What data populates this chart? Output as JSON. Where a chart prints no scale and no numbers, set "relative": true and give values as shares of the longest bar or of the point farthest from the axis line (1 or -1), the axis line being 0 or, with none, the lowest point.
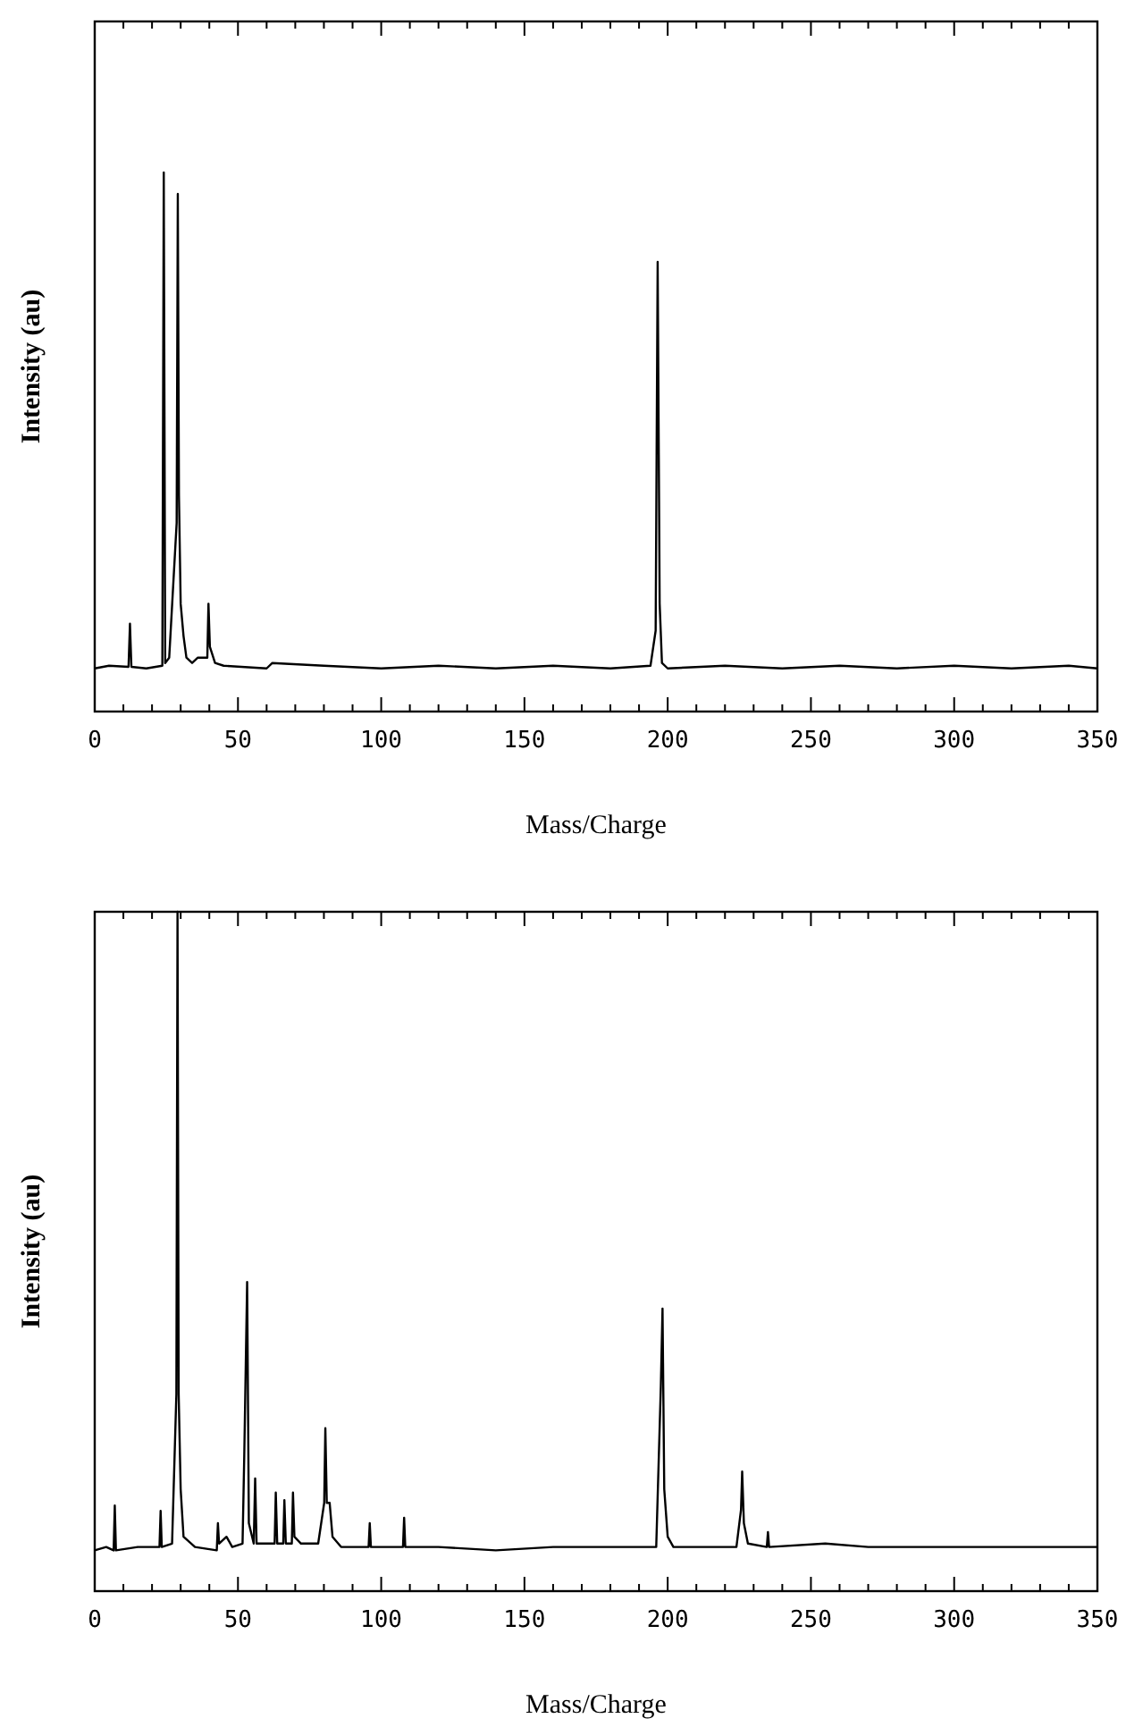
{
  "chart_data": [
    {
      "type": "line",
      "relative": true,
      "xlabel": "Mass/Charge",
      "ylabel": "Intensity (au)",
      "tick_labels": "x",
      "xlim": [
        0,
        350
      ],
      "xticks": [
        0,
        {
          "value": 10,
          "label": null
        },
        {
          "value": 20,
          "label": null
        },
        {
          "value": 30,
          "label": null
        },
        {
          "value": 40,
          "label": null
        },
        50,
        {
          "value": 60,
          "label": null
        },
        {
          "value": 70,
          "label": null
        },
        {
          "value": 80,
          "label": null
        },
        {
          "value": 90,
          "label": null
        },
        100,
        {
          "value": 110,
          "label": null
        },
        {
          "value": 120,
          "label": null
        },
        {
          "value": 130,
          "label": null
        },
        {
          "value": 140,
          "label": null
        },
        150,
        {
          "value": 160,
          "label": null
        },
        {
          "value": 170,
          "label": null
        },
        {
          "value": 180,
          "label": null
        },
        {
          "value": 190,
          "label": null
        },
        200,
        {
          "value": 210,
          "label": null
        },
        {
          "value": 220,
          "label": null
        },
        {
          "value": 230,
          "label": null
        },
        {
          "value": 240,
          "label": null
        },
        250,
        {
          "value": 260,
          "label": null
        },
        {
          "value": 270,
          "label": null
        },
        {
          "value": 280,
          "label": null
        },
        {
          "value": 290,
          "label": null
        },
        300,
        {
          "value": 310,
          "label": null
        },
        {
          "value": 320,
          "label": null
        },
        {
          "value": 330,
          "label": null
        },
        {
          "value": 340,
          "label": null
        },
        350
      ],
      "series": [
        {
          "color": "#000000",
          "x": [
            0,
            5,
            11.8,
            12.3,
            12.8,
            18,
            23.6,
            24.1,
            24.6,
            26,
            28.6,
            29.0,
            29.4,
            30,
            31,
            32,
            34,
            36,
            39.3,
            39.7,
            40.2,
            42,
            45,
            60,
            62,
            80,
            100,
            120,
            140,
            160,
            180,
            194,
            195.8,
            196.5,
            197.2,
            198,
            200,
            220,
            240,
            260,
            280,
            300,
            320,
            340,
            350
          ],
          "values": [
            0.08,
            0.085,
            0.083,
            0.163,
            0.083,
            0.08,
            0.085,
            1,
            0.09,
            0.1,
            0.35,
            0.96,
            0.4,
            0.2,
            0.14,
            0.1,
            0.09,
            0.1,
            0.1,
            0.2,
            0.12,
            0.09,
            0.085,
            0.08,
            0.09,
            0.085,
            0.08,
            0.085,
            0.08,
            0.085,
            0.08,
            0.085,
            0.15,
            0.834,
            0.2,
            0.09,
            0.08,
            0.085,
            0.08,
            0.085,
            0.08,
            0.085,
            0.08,
            0.085,
            0.08
          ]
        }
      ]
    },
    {
      "type": "line",
      "relative": true,
      "xlabel": "Mass/Charge",
      "ylabel": "Intensity (au)",
      "tick_labels": "x",
      "xlim": [
        0,
        350
      ],
      "xticks": [
        0,
        {
          "value": 10,
          "label": null
        },
        {
          "value": 20,
          "label": null
        },
        {
          "value": 30,
          "label": null
        },
        {
          "value": 40,
          "label": null
        },
        50,
        {
          "value": 60,
          "label": null
        },
        {
          "value": 70,
          "label": null
        },
        {
          "value": 80,
          "label": null
        },
        {
          "value": 90,
          "label": null
        },
        100,
        {
          "value": 110,
          "label": null
        },
        {
          "value": 120,
          "label": null
        },
        {
          "value": 130,
          "label": null
        },
        {
          "value": 140,
          "label": null
        },
        150,
        {
          "value": 160,
          "label": null
        },
        {
          "value": 170,
          "label": null
        },
        {
          "value": 180,
          "label": null
        },
        {
          "value": 190,
          "label": null
        },
        200,
        {
          "value": 210,
          "label": null
        },
        {
          "value": 220,
          "label": null
        },
        {
          "value": 230,
          "label": null
        },
        {
          "value": 240,
          "label": null
        },
        250,
        {
          "value": 260,
          "label": null
        },
        {
          "value": 270,
          "label": null
        },
        {
          "value": 280,
          "label": null
        },
        {
          "value": 290,
          "label": null
        },
        300,
        {
          "value": 310,
          "label": null
        },
        {
          "value": 320,
          "label": null
        },
        {
          "value": 330,
          "label": null
        },
        {
          "value": 340,
          "label": null
        },
        350
      ],
      "series": [
        {
          "color": "#000000",
          "x": [
            0,
            4,
            6.6,
            7,
            7.4,
            15,
            22.6,
            23,
            23.4,
            27,
            28.5,
            28.9,
            29.3,
            30,
            31,
            35,
            42.6,
            43,
            43.4,
            46,
            48,
            51.6,
            52.2,
            53.2,
            53.8,
            55.5,
            56,
            56.5,
            60,
            62.8,
            63.2,
            63.7,
            65.8,
            66.2,
            66.7,
            68.8,
            69.2,
            69.7,
            72,
            78,
            80.1,
            80.5,
            81,
            82,
            83,
            86,
            95.6,
            96,
            96.4,
            100,
            107.6,
            108,
            108.4,
            120,
            140,
            160,
            180,
            196,
            197.6,
            198.2,
            198.8,
            200,
            202,
            215,
            224,
            225.6,
            226,
            226.6,
            228,
            234.6,
            235,
            235.4,
            255,
            270,
            290,
            310,
            330,
            350
          ],
          "values": [
            0.06,
            0.065,
            0.06,
            0.126,
            0.06,
            0.065,
            0.065,
            0.118,
            0.065,
            0.07,
            0.29,
            1,
            0.29,
            0.15,
            0.08,
            0.065,
            0.06,
            0.1,
            0.07,
            0.08,
            0.065,
            0.07,
            0.2,
            0.455,
            0.1,
            0.07,
            0.166,
            0.07,
            0.07,
            0.07,
            0.145,
            0.07,
            0.07,
            0.134,
            0.07,
            0.07,
            0.145,
            0.08,
            0.07,
            0.07,
            0.13,
            0.24,
            0.13,
            0.13,
            0.08,
            0.065,
            0.065,
            0.1,
            0.065,
            0.065,
            0.065,
            0.108,
            0.065,
            0.065,
            0.06,
            0.065,
            0.065,
            0.065,
            0.3,
            0.416,
            0.15,
            0.08,
            0.065,
            0.065,
            0.065,
            0.12,
            0.176,
            0.1,
            0.07,
            0.065,
            0.087,
            0.065,
            0.07,
            0.065,
            0.065,
            0.065,
            0.065,
            0.065
          ]
        }
      ]
    }
  ]
}
